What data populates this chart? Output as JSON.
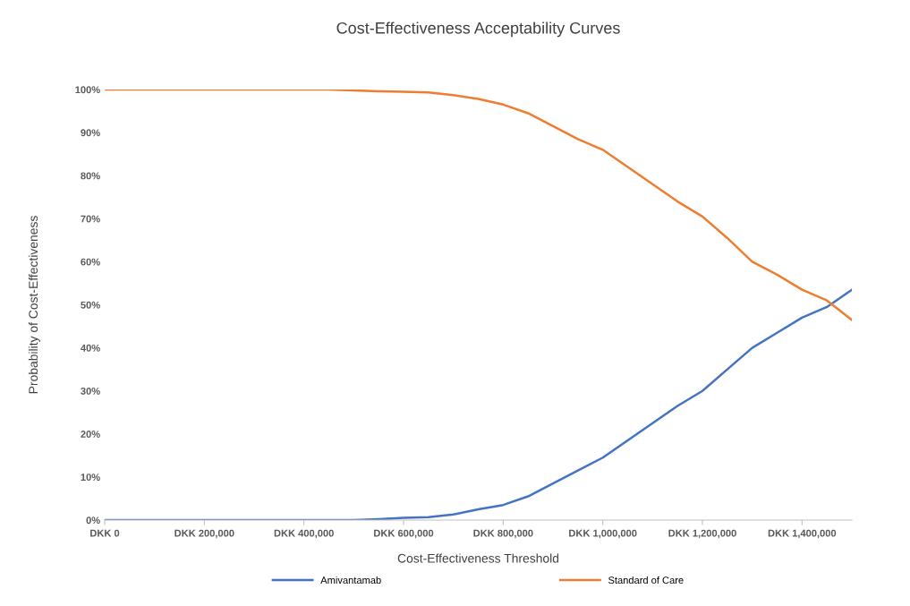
{
  "chart_data": {
    "type": "line",
    "title": "Cost-Effectiveness Acceptability Curves",
    "xlabel": "Cost-Effectiveness Threshold",
    "ylabel": "Probability of Cost-Effectiveness",
    "categories": [
      "DKK 0",
      null,
      null,
      null,
      "DKK 200,000",
      null,
      null,
      null,
      "DKK 400,000",
      null,
      null,
      null,
      "DKK 600,000",
      null,
      null,
      null,
      "DKK 800,000",
      null,
      null,
      null,
      "DKK 1,000,000",
      null,
      null,
      null,
      "DKK 1,200,000",
      null,
      null,
      null,
      "DKK 1,400,000",
      null,
      null
    ],
    "series": [
      {
        "name": "Amivantamab",
        "color": "#4472c4",
        "values": [
          0,
          0,
          0,
          0,
          0,
          0,
          0,
          0,
          0,
          0,
          0,
          0.2,
          0.5,
          0.7,
          1.3,
          2.5,
          3.5,
          5.5,
          8.5,
          11.5,
          14.5,
          18.5,
          22.5,
          26.5,
          30,
          35,
          40,
          43.5,
          47,
          49.5,
          53.5
        ]
      },
      {
        "name": "Standard of Care",
        "color": "#ed7d31",
        "values": [
          100,
          100,
          100,
          100,
          100,
          100,
          100,
          100,
          100,
          100,
          99.8,
          99.6,
          99.5,
          99.3,
          98.7,
          97.8,
          96.5,
          94.5,
          91.5,
          88.5,
          86,
          82,
          78,
          74,
          70.5,
          65.5,
          60,
          57,
          53.5,
          51,
          46.5
        ]
      }
    ],
    "ylim": [
      0,
      100
    ],
    "yticks": [
      {
        "value": 0,
        "label": "0%"
      },
      {
        "value": 10,
        "label": "10%"
      },
      {
        "value": 20,
        "label": "20%"
      },
      {
        "value": 30,
        "label": "30%"
      },
      {
        "value": 40,
        "label": "40%"
      },
      {
        "value": 50,
        "label": "50%"
      },
      {
        "value": 60,
        "label": "60%"
      },
      {
        "value": 70,
        "label": "70%"
      },
      {
        "value": 80,
        "label": "80%"
      },
      {
        "value": 90,
        "label": "90%"
      },
      {
        "value": 100,
        "label": "100%"
      }
    ],
    "legend": "bottom",
    "line_style": "solid"
  }
}
